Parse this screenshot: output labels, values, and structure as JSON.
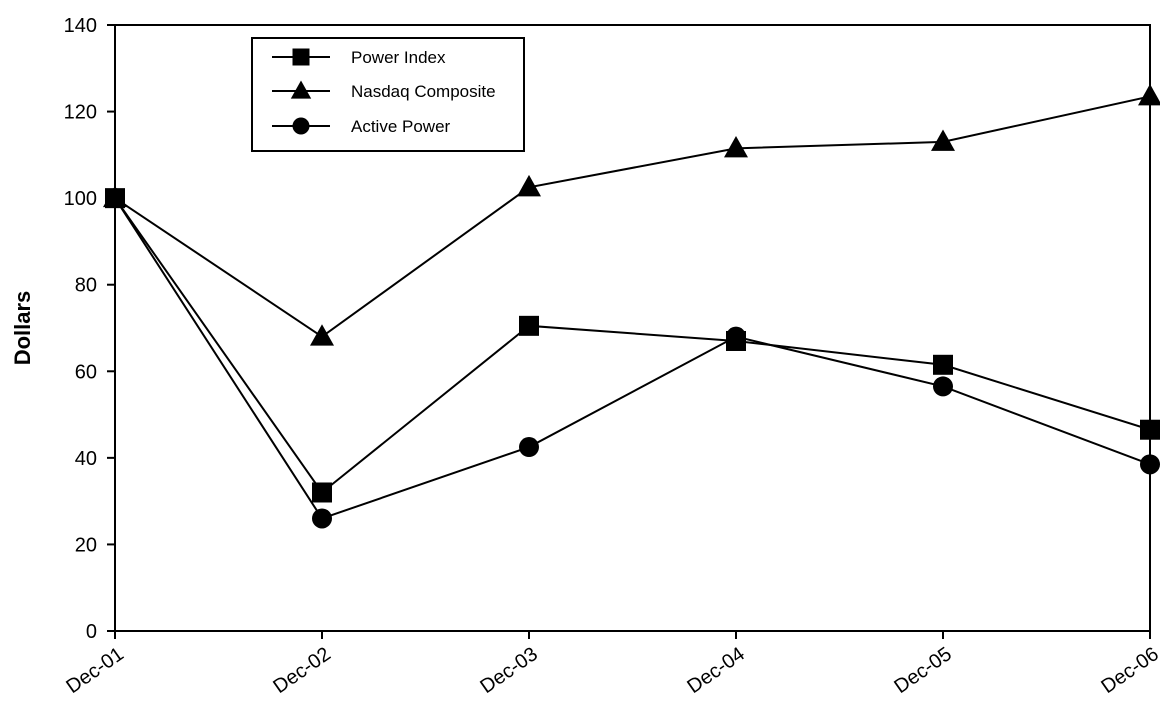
{
  "chart_data": {
    "type": "line",
    "title": "",
    "xlabel": "",
    "ylabel": "Dollars",
    "ylim": [
      0,
      140
    ],
    "yticks": [
      0,
      20,
      40,
      60,
      80,
      100,
      120,
      140
    ],
    "categories": [
      "Dec-01",
      "Dec-02",
      "Dec-03",
      "Dec-04",
      "Dec-05",
      "Dec-06"
    ],
    "grid": false,
    "legend_position": "top-left",
    "series": [
      {
        "name": "Power Index",
        "marker": "square",
        "values": [
          100,
          32,
          70.5,
          67,
          61.5,
          46.5
        ]
      },
      {
        "name": "Nasdaq Composite",
        "marker": "triangle",
        "values": [
          100,
          68,
          102.5,
          111.5,
          113,
          123.5
        ]
      },
      {
        "name": "Active Power",
        "marker": "circle",
        "values": [
          100,
          26,
          42.5,
          68,
          56.5,
          38.5
        ]
      }
    ],
    "colors": {
      "line": "#000000",
      "marker": "#000000",
      "background": "#ffffff"
    }
  }
}
